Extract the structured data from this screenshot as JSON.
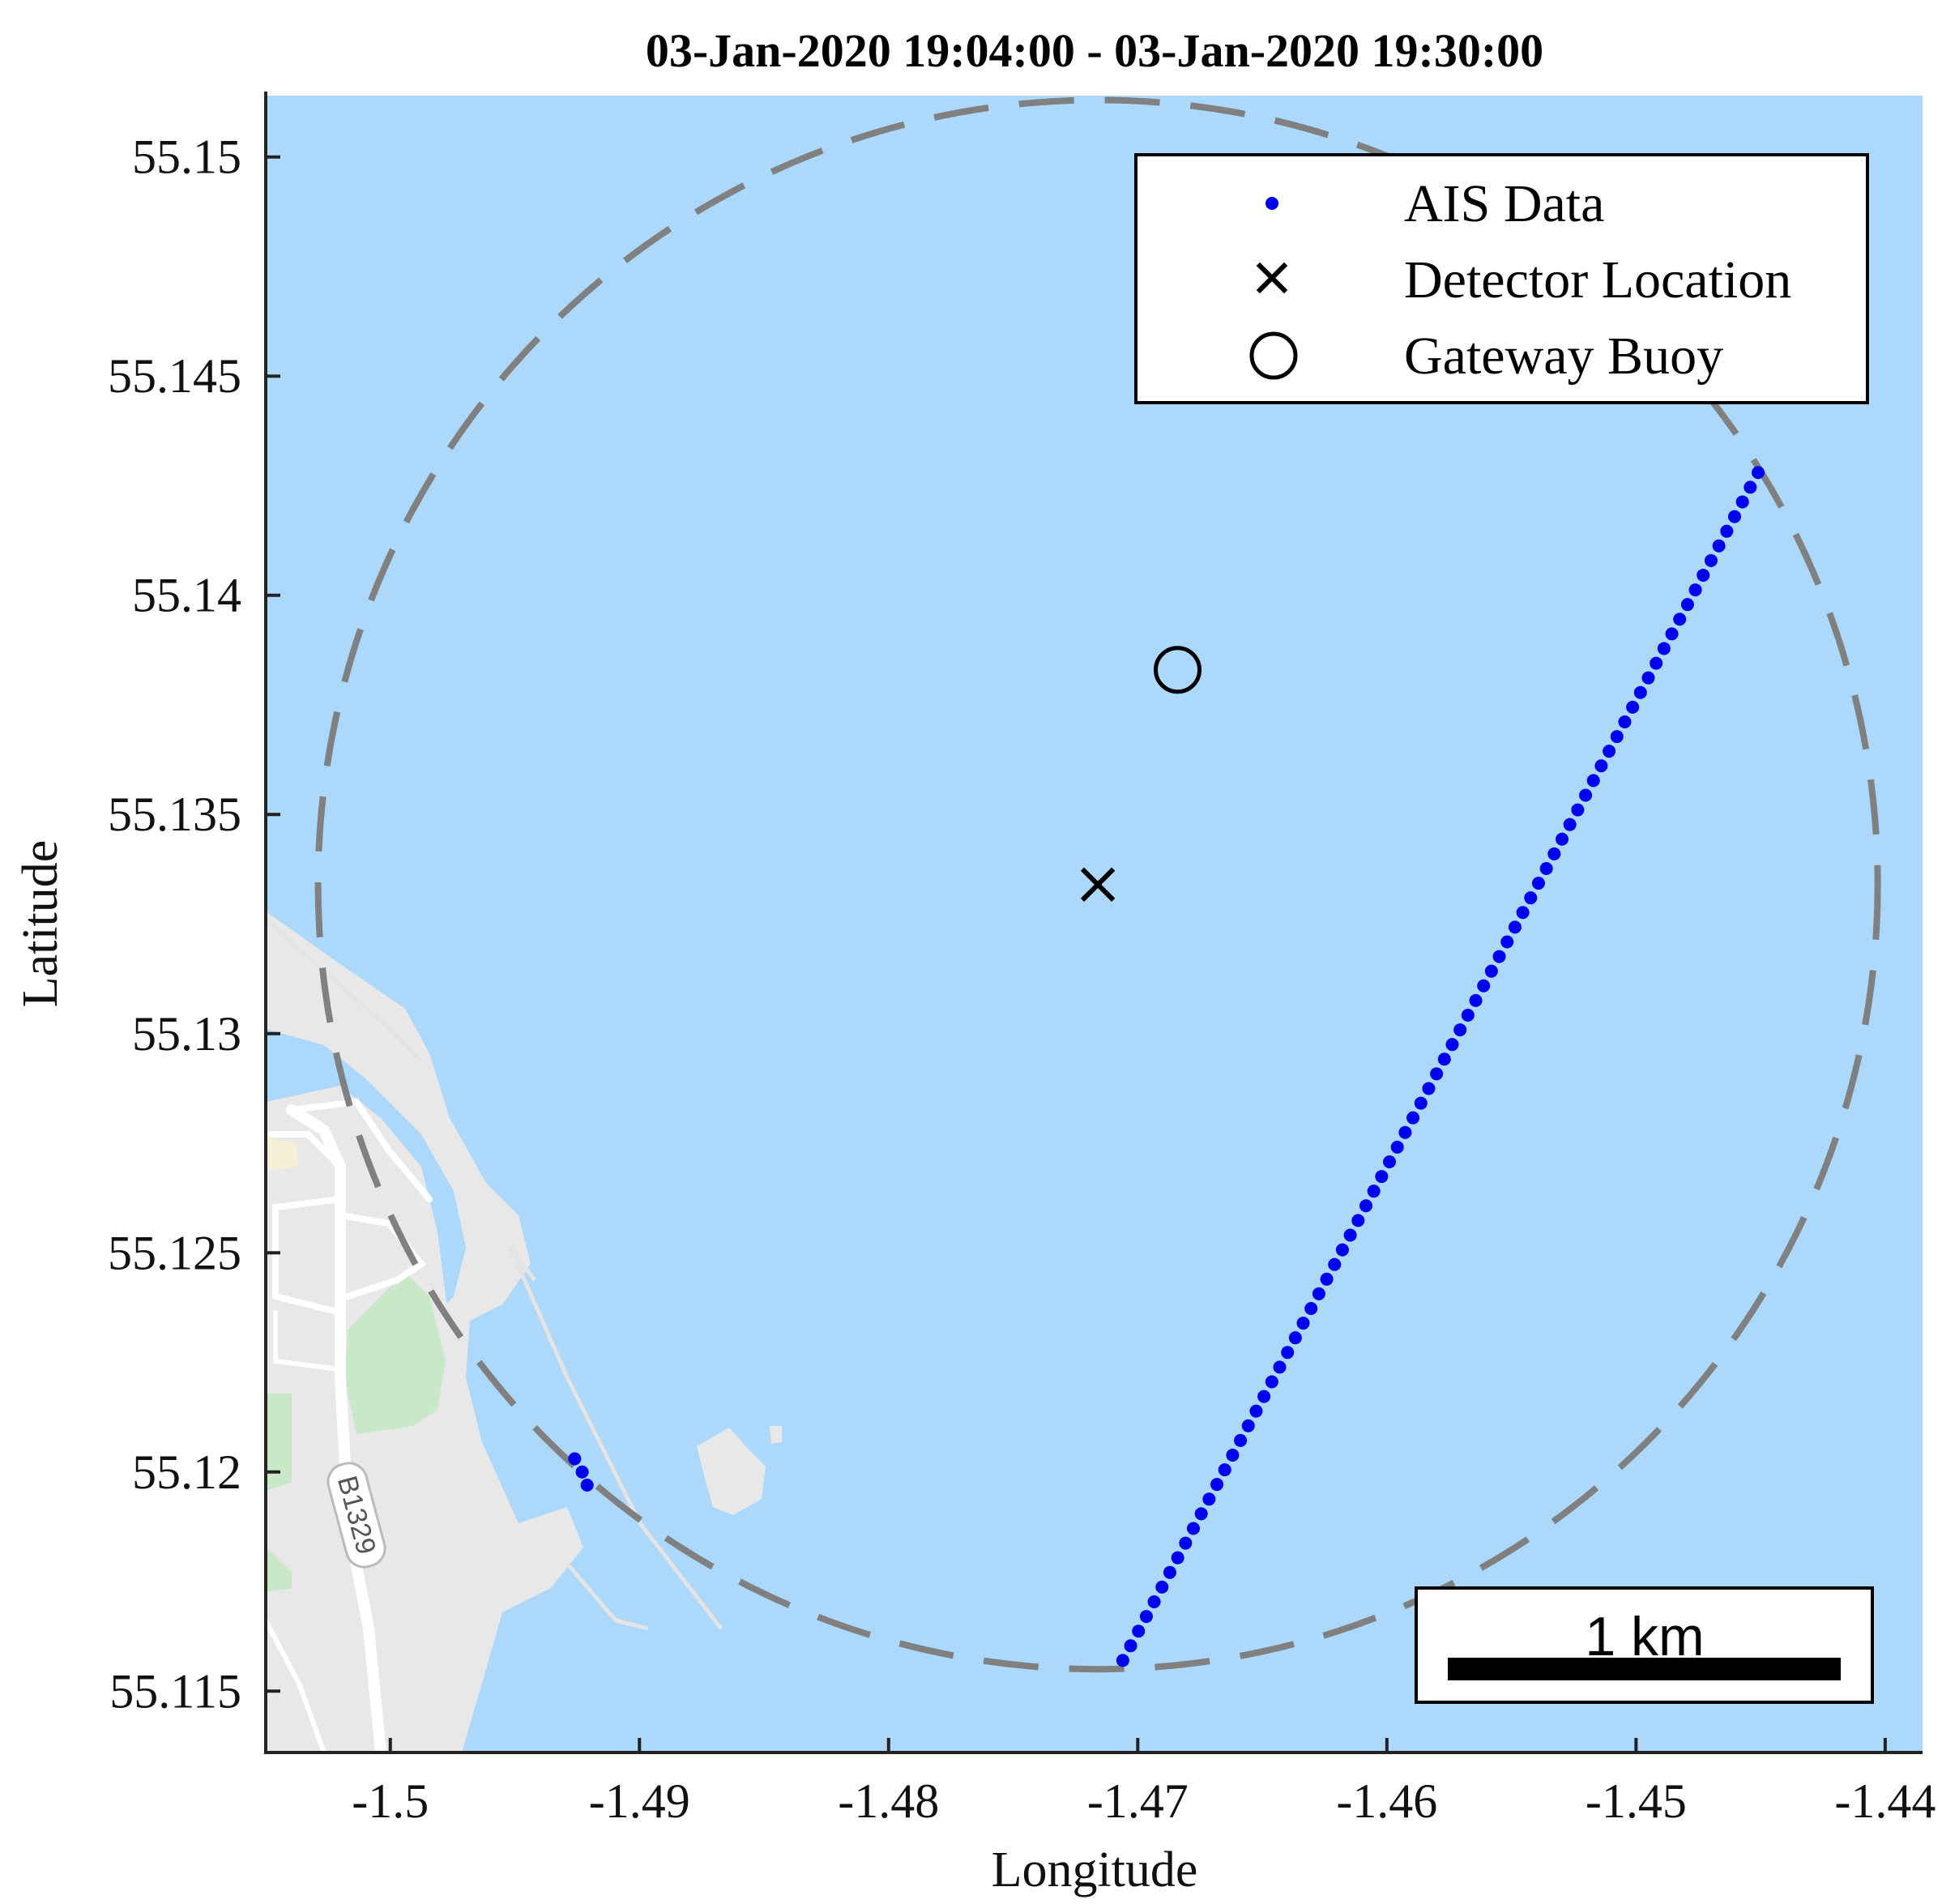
{
  "chart_data": {
    "type": "scatter",
    "title": "03-Jan-2020 19:04:00 - 03-Jan-2020 19:30:00",
    "xlabel": "Longitude",
    "ylabel": "Latitude",
    "xlim": [
      -1.505,
      -1.4385
    ],
    "ylim": [
      55.1136,
      55.1514
    ],
    "xticks": [
      -1.5,
      -1.49,
      -1.48,
      -1.47,
      -1.46,
      -1.45,
      -1.44
    ],
    "xtick_labels": [
      "-1.5",
      "-1.49",
      "-1.48",
      "-1.47",
      "-1.46",
      "-1.45",
      "-1.44"
    ],
    "yticks": [
      55.115,
      55.12,
      55.125,
      55.13,
      55.135,
      55.14,
      55.145,
      55.15
    ],
    "ytick_labels": [
      "55.115",
      "55.12",
      "55.125",
      "55.13",
      "55.135",
      "55.14",
      "55.145",
      "55.15"
    ],
    "series": [
      {
        "name": "AIS Data",
        "color": "#0000ee",
        "marker": "dot",
        "track_start": [
          -1.4706,
          55.1157
        ],
        "track_end": [
          -1.4451,
          55.1428
        ],
        "count": 82,
        "extra_points": [
          [
            -1.4926,
            55.1203
          ],
          [
            -1.4923,
            55.12
          ],
          [
            -1.4921,
            55.1197
          ]
        ]
      },
      {
        "name": "Detector Location",
        "color": "#000000",
        "marker": "x",
        "x": [
          -1.4716
        ],
        "y": [
          55.1334
        ]
      },
      {
        "name": "Gateway Buoy",
        "color": "#000000",
        "marker": "circle",
        "x": [
          -1.4684
        ],
        "y": [
          55.1383
        ]
      }
    ],
    "detection_range": {
      "style": "dashed",
      "color": "#808080",
      "center": [
        -1.4716,
        55.1334
      ],
      "radius_lon": 0.0313,
      "radius_lat": 0.0179
    },
    "legend": {
      "position": "top-right",
      "entries": [
        "AIS Data",
        "Detector Location",
        "Gateway Buoy"
      ]
    },
    "scale_bar": {
      "label": "1 km",
      "position": "bottom-right"
    },
    "basemap": {
      "water_color": "#abd8fb",
      "land_color": "#e8e8e8",
      "park_color": "#c8e8c8",
      "road_label": "B1329"
    }
  }
}
